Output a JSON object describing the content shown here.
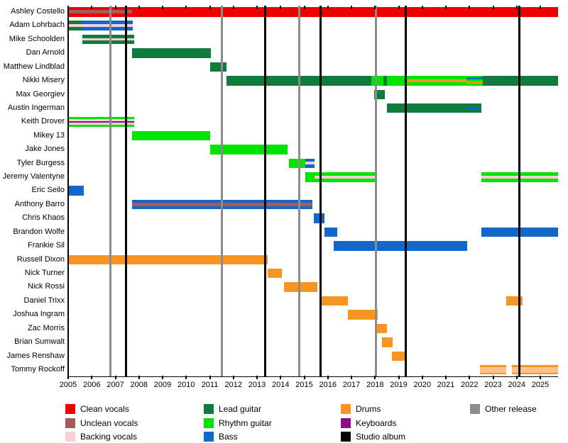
{
  "chart_data": {
    "type": "bar",
    "subtype": "band-member-timeline-gantt",
    "title": "",
    "x_axis": {
      "min": 2005,
      "max": 2025.75,
      "ticks": [
        2005,
        2006,
        2007,
        2008,
        2009,
        2010,
        2011,
        2012,
        2013,
        2014,
        2015,
        2016,
        2017,
        2018,
        2019,
        2020,
        2021,
        2022,
        2023,
        2024,
        2025
      ]
    },
    "palette": {
      "clean": "#ee0000",
      "unclean": "#a65b5b",
      "backing": "#f8cfd3",
      "lead": "#117a3d",
      "rhythm": "#00e400",
      "bass": "#1168c8",
      "drums": "#f79522",
      "paledrums": "#fcc289",
      "keys": "#8b0d8b",
      "album_line": "#000000",
      "release_line": "#8c8c8c"
    },
    "legend_columns": [
      [
        {
          "label": "Clean vocals",
          "role": "clean"
        },
        {
          "label": "Unclean vocals",
          "role": "unclean"
        },
        {
          "label": "Backing vocals",
          "role": "backing"
        }
      ],
      [
        {
          "label": "Lead guitar",
          "role": "lead"
        },
        {
          "label": "Rhythm guitar",
          "role": "rhythm"
        },
        {
          "label": "Bass",
          "role": "bass"
        }
      ],
      [
        {
          "label": "Drums",
          "role": "drums"
        },
        {
          "label": "Keyboards",
          "role": "keys"
        },
        {
          "label": "Studio album",
          "role": "album_line"
        }
      ],
      [
        {
          "label": "Other release",
          "role": "release_line"
        }
      ]
    ],
    "releases": {
      "studio_albums": [
        2007.45,
        2013.35,
        2015.7,
        2019.3,
        2024.1
      ],
      "other_releases": [
        2006.8,
        2011.5,
        2014.8,
        2018.05
      ]
    },
    "members": [
      {
        "name": "Ashley Costello",
        "bars": [
          {
            "start": 2005.0,
            "end": 2025.75,
            "role": "clean",
            "stripes": [
              {
                "role": "unclean",
                "start": 2005.0,
                "end": 2007.7,
                "pos": "thickmid"
              }
            ]
          }
        ]
      },
      {
        "name": "Adam Lohrbach",
        "bars": [
          {
            "start": 2005.0,
            "end": 2005.6,
            "role": "lead",
            "stripes": [
              {
                "role": "backing",
                "start": 2005.0,
                "end": 2005.6,
                "pos": "mid"
              }
            ]
          },
          {
            "start": 2005.6,
            "end": 2007.75,
            "role": "bass",
            "stripes": [
              {
                "role": "backing",
                "start": 2005.6,
                "end": 2007.75,
                "pos": "mid"
              }
            ]
          }
        ]
      },
      {
        "name": "Mike Schoolden",
        "bars": [
          {
            "start": 2005.6,
            "end": 2007.8,
            "role": "lead",
            "stripes": [
              {
                "role": "backing",
                "start": 2005.6,
                "end": 2007.8,
                "pos": "mid"
              }
            ]
          }
        ]
      },
      {
        "name": "Dan Arnold",
        "bars": [
          {
            "start": 2007.7,
            "end": 2011.05,
            "role": "lead"
          }
        ]
      },
      {
        "name": "Matthew Lindblad",
        "bars": [
          {
            "start": 2011.0,
            "end": 2011.7,
            "role": "lead"
          }
        ]
      },
      {
        "name": "Nikki Misery",
        "bars": [
          {
            "start": 2011.7,
            "end": 2017.85,
            "role": "lead"
          },
          {
            "start": 2017.85,
            "end": 2018.35,
            "role": "rhythm"
          },
          {
            "start": 2018.35,
            "end": 2018.5,
            "role": "lead"
          },
          {
            "start": 2018.5,
            "end": 2022.55,
            "role": "rhythm",
            "stripes": [
              {
                "role": "drums",
                "start": 2019.3,
                "end": 2021.87,
                "pos": "mid"
              },
              {
                "role": "bass",
                "start": 2021.87,
                "end": 2022.55,
                "pos": "upper"
              },
              {
                "role": "drums",
                "start": 2021.87,
                "end": 2022.55,
                "pos": "lower"
              }
            ]
          },
          {
            "start": 2022.55,
            "end": 2025.75,
            "role": "lead"
          }
        ]
      },
      {
        "name": "Max Georgiev",
        "bars": [
          {
            "start": 2017.95,
            "end": 2018.4,
            "role": "lead"
          }
        ]
      },
      {
        "name": "Austin Ingerman",
        "bars": [
          {
            "start": 2018.5,
            "end": 2022.5,
            "role": "lead",
            "stripes": [
              {
                "role": "bass",
                "start": 2021.9,
                "end": 2022.5,
                "pos": "mid"
              }
            ]
          }
        ]
      },
      {
        "name": "Keith Drover",
        "bars": [
          {
            "start": 2005.0,
            "end": 2007.8,
            "role": "rhythm",
            "stripes": [
              {
                "role": "backing",
                "start": 2005.0,
                "end": 2007.8,
                "pos": "band"
              },
              {
                "role": "keys",
                "start": 2005.0,
                "end": 2007.8,
                "pos": "thinmid"
              }
            ]
          }
        ]
      },
      {
        "name": "Mikey 13",
        "bars": [
          {
            "start": 2007.7,
            "end": 2011.0,
            "role": "rhythm"
          }
        ]
      },
      {
        "name": "Jake Jones",
        "bars": [
          {
            "start": 2011.0,
            "end": 2014.3,
            "role": "rhythm"
          }
        ]
      },
      {
        "name": "Tyler Burgess",
        "bars": [
          {
            "start": 2014.35,
            "end": 2015.05,
            "role": "rhythm"
          },
          {
            "start": 2015.05,
            "end": 2015.45,
            "role": "bass",
            "stripes": [
              {
                "role": "backing",
                "start": 2015.05,
                "end": 2015.45,
                "pos": "mid"
              }
            ]
          }
        ]
      },
      {
        "name": "Jeremy Valentyne",
        "bars": [
          {
            "start": 2015.05,
            "end": 2018.05,
            "role": "rhythm",
            "stripes": [
              {
                "role": "backing",
                "start": 2015.45,
                "end": 2018.05,
                "pos": "mid"
              }
            ]
          },
          {
            "start": 2022.5,
            "end": 2025.75,
            "role": "rhythm",
            "stripes": [
              {
                "role": "backing",
                "start": 2022.5,
                "end": 2025.75,
                "pos": "mid"
              }
            ]
          }
        ]
      },
      {
        "name": "Eric Seilo",
        "bars": [
          {
            "start": 2005.0,
            "end": 2005.65,
            "role": "bass"
          }
        ]
      },
      {
        "name": "Anthony Barro",
        "bars": [
          {
            "start": 2007.7,
            "end": 2015.35,
            "role": "bass",
            "stripes": [
              {
                "role": "unclean",
                "start": 2007.7,
                "end": 2015.35,
                "pos": "thickmid"
              }
            ]
          }
        ]
      },
      {
        "name": "Chris Khaos",
        "bars": [
          {
            "start": 2015.4,
            "end": 2015.85,
            "role": "bass"
          }
        ]
      },
      {
        "name": "Brandon Wolfe",
        "bars": [
          {
            "start": 2015.85,
            "end": 2016.4,
            "role": "bass"
          },
          {
            "start": 2022.5,
            "end": 2025.75,
            "role": "bass"
          }
        ]
      },
      {
        "name": "Frankie Sil",
        "bars": [
          {
            "start": 2016.25,
            "end": 2021.9,
            "role": "bass"
          }
        ]
      },
      {
        "name": "Russell Dixon",
        "bars": [
          {
            "start": 2005.0,
            "end": 2013.45,
            "role": "drums"
          }
        ]
      },
      {
        "name": "Nick Turner",
        "bars": [
          {
            "start": 2013.45,
            "end": 2014.05,
            "role": "drums"
          }
        ]
      },
      {
        "name": "Nick Rossi",
        "bars": [
          {
            "start": 2014.15,
            "end": 2015.55,
            "role": "drums"
          }
        ]
      },
      {
        "name": "Daniel Trixx",
        "bars": [
          {
            "start": 2015.7,
            "end": 2016.85,
            "role": "drums"
          },
          {
            "start": 2023.55,
            "end": 2024.25,
            "role": "drums"
          }
        ]
      },
      {
        "name": "Joshua Ingram",
        "bars": [
          {
            "start": 2016.85,
            "end": 2018.1,
            "role": "drums"
          }
        ]
      },
      {
        "name": "Zac Morris",
        "bars": [
          {
            "start": 2018.05,
            "end": 2018.5,
            "role": "drums"
          }
        ]
      },
      {
        "name": "Brian Sumwalt",
        "bars": [
          {
            "start": 2018.3,
            "end": 2018.75,
            "role": "drums"
          }
        ]
      },
      {
        "name": "James Renshaw",
        "bars": [
          {
            "start": 2018.7,
            "end": 2019.25,
            "role": "drums"
          }
        ]
      },
      {
        "name": "Tommy Rockoff",
        "bars": [
          {
            "start": 2022.45,
            "end": 2023.55,
            "role": "drums",
            "stripes": [
              {
                "role": "paledrums",
                "start": 2022.45,
                "end": 2023.55,
                "pos": "band"
              }
            ]
          },
          {
            "start": 2023.8,
            "end": 2025.75,
            "role": "drums",
            "stripes": [
              {
                "role": "paledrums",
                "start": 2023.8,
                "end": 2025.75,
                "pos": "band"
              }
            ]
          }
        ]
      }
    ]
  }
}
